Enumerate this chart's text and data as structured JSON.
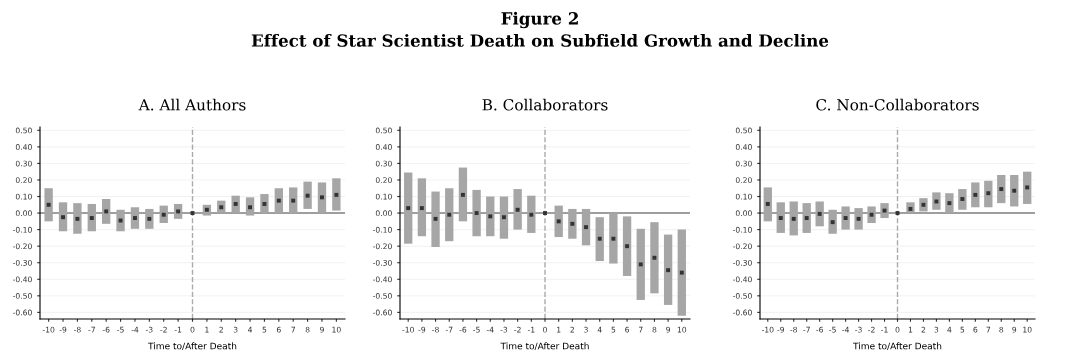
{
  "chart_data": [
    {
      "type": "scatter",
      "title": "A. All Authors",
      "xlabel": "Time to/After Death",
      "annotations": [
        "Figure 2",
        "Effect of Star Scientist Death on Subfield Growth and Decline"
      ],
      "x": [
        -10,
        -9,
        -8,
        -7,
        -6,
        -5,
        -4,
        -3,
        -2,
        -1,
        0,
        1,
        2,
        3,
        4,
        5,
        6,
        7,
        8,
        9,
        10
      ],
      "series": [
        {
          "color": "#333333",
          "values": [
            0.05,
            -0.025,
            -0.035,
            -0.03,
            0.01,
            -0.045,
            -0.03,
            -0.035,
            -0.01,
            0.01,
            0,
            0.02,
            0.035,
            0.055,
            0.035,
            0.055,
            0.075,
            0.075,
            0.105,
            0.095,
            0.11
          ],
          "errors": [
            [
              -0.05,
              0.15
            ],
            [
              -0.11,
              0.065
            ],
            [
              -0.125,
              0.06
            ],
            [
              -0.11,
              0.055
            ],
            [
              -0.065,
              0.085
            ],
            [
              -0.11,
              0.02
            ],
            [
              -0.095,
              0.035
            ],
            [
              -0.095,
              0.025
            ],
            [
              -0.06,
              0.045
            ],
            [
              -0.035,
              0.055
            ],
            null,
            [
              -0.015,
              0.05
            ],
            [
              0.0,
              0.075
            ],
            [
              0.0,
              0.105
            ],
            [
              -0.015,
              0.095
            ],
            [
              0.0,
              0.115
            ],
            [
              0.0,
              0.15
            ],
            [
              0.0,
              0.155
            ],
            [
              0.025,
              0.19
            ],
            [
              0.0,
              0.185
            ],
            [
              0.015,
              0.21
            ]
          ]
        }
      ],
      "xlim": [
        -10.6,
        10.6
      ],
      "xticks": [
        -10,
        -9,
        -8,
        -7,
        -6,
        -5,
        -4,
        -3,
        -2,
        -1,
        0,
        1,
        2,
        3,
        4,
        5,
        6,
        7,
        8,
        9,
        10
      ],
      "ylim": [
        -0.64,
        0.52
      ],
      "yticks": [
        {
          "value": -0.6,
          "label": "-0.60"
        },
        {
          "value": -0.5,
          "label": "-0.50"
        },
        {
          "value": -0.4,
          "label": "-0.40"
        },
        {
          "value": -0.3,
          "label": "-0.30"
        },
        {
          "value": -0.2,
          "label": "-0.20"
        },
        {
          "value": -0.1,
          "label": "-0.10"
        },
        {
          "value": 0,
          "label": "0.00"
        },
        {
          "value": 0.1,
          "label": "0.10"
        },
        {
          "value": 0.2,
          "label": "0.20"
        },
        {
          "value": 0.3,
          "label": "0.30"
        },
        {
          "value": 0.4,
          "label": "0.40"
        },
        {
          "value": 0.5,
          "label": "0.50"
        }
      ],
      "ref_lines": [
        {
          "axis": "y",
          "value": 0,
          "color": "#808080",
          "line_style": "solid"
        },
        {
          "axis": "x",
          "value": 0,
          "color": "#aaaaaa",
          "line_style": "dashed"
        }
      ],
      "grid": "y",
      "marker": "square"
    },
    {
      "type": "scatter",
      "title": "B. Collaborators",
      "xlabel": "Time to/After Death",
      "x": [
        -10,
        -9,
        -8,
        -7,
        -6,
        -5,
        -4,
        -3,
        -2,
        -1,
        0,
        1,
        2,
        3,
        4,
        5,
        6,
        7,
        8,
        9,
        10
      ],
      "series": [
        {
          "color": "#333333",
          "values": [
            0.03,
            0.03,
            -0.035,
            -0.01,
            0.11,
            0.0,
            -0.02,
            -0.025,
            0.02,
            -0.01,
            0,
            -0.05,
            -0.065,
            -0.085,
            -0.155,
            -0.155,
            -0.2,
            -0.31,
            -0.27,
            -0.345,
            -0.36
          ],
          "errors": [
            [
              -0.185,
              0.245
            ],
            [
              -0.14,
              0.21
            ],
            [
              -0.205,
              0.13
            ],
            [
              -0.17,
              0.15
            ],
            [
              -0.05,
              0.275
            ],
            [
              -0.14,
              0.14
            ],
            [
              -0.14,
              0.1
            ],
            [
              -0.155,
              0.1
            ],
            [
              -0.1,
              0.145
            ],
            [
              -0.12,
              0.105
            ],
            null,
            [
              -0.145,
              0.045
            ],
            [
              -0.155,
              0.025
            ],
            [
              -0.195,
              0.025
            ],
            [
              -0.29,
              -0.025
            ],
            [
              -0.305,
              0.0
            ],
            [
              -0.38,
              -0.02
            ],
            [
              -0.525,
              -0.095
            ],
            [
              -0.485,
              -0.055
            ],
            [
              -0.555,
              -0.13
            ],
            [
              -0.62,
              -0.1
            ]
          ]
        }
      ],
      "xlim": [
        -10.6,
        10.6
      ],
      "xticks": [
        -10,
        -9,
        -8,
        -7,
        -6,
        -5,
        -4,
        -3,
        -2,
        -1,
        0,
        1,
        2,
        3,
        4,
        5,
        6,
        7,
        8,
        9,
        10
      ],
      "ylim": [
        -0.64,
        0.52
      ],
      "yticks": [
        {
          "value": -0.6,
          "label": "-0.60"
        },
        {
          "value": -0.5,
          "label": "-0.50"
        },
        {
          "value": -0.4,
          "label": "-0.40"
        },
        {
          "value": -0.3,
          "label": "-0.30"
        },
        {
          "value": -0.2,
          "label": "-0.20"
        },
        {
          "value": -0.1,
          "label": "-0.10"
        },
        {
          "value": 0,
          "label": "0.00"
        },
        {
          "value": 0.1,
          "label": "0.10"
        },
        {
          "value": 0.2,
          "label": "0.20"
        },
        {
          "value": 0.3,
          "label": "0.30"
        },
        {
          "value": 0.4,
          "label": "0.40"
        },
        {
          "value": 0.5,
          "label": "0.50"
        }
      ],
      "ref_lines": [
        {
          "axis": "y",
          "value": 0,
          "color": "#808080",
          "line_style": "solid"
        },
        {
          "axis": "x",
          "value": 0,
          "color": "#aaaaaa",
          "line_style": "dashed"
        }
      ],
      "grid": "y",
      "marker": "square"
    },
    {
      "type": "scatter",
      "title": "C. Non-Collaborators",
      "xlabel": "Time to/After Death",
      "x": [
        -10,
        -9,
        -8,
        -7,
        -6,
        -5,
        -4,
        -3,
        -2,
        -1,
        0,
        1,
        2,
        3,
        4,
        5,
        6,
        7,
        8,
        9,
        10
      ],
      "series": [
        {
          "color": "#333333",
          "values": [
            0.055,
            -0.03,
            -0.035,
            -0.03,
            -0.005,
            -0.055,
            -0.03,
            -0.035,
            -0.01,
            0.015,
            0,
            0.025,
            0.05,
            0.07,
            0.06,
            0.085,
            0.11,
            0.12,
            0.145,
            0.135,
            0.155
          ],
          "errors": [
            [
              -0.05,
              0.155
            ],
            [
              -0.12,
              0.065
            ],
            [
              -0.135,
              0.07
            ],
            [
              -0.12,
              0.06
            ],
            [
              -0.08,
              0.07
            ],
            [
              -0.125,
              0.02
            ],
            [
              -0.1,
              0.04
            ],
            [
              -0.1,
              0.03
            ],
            [
              -0.06,
              0.04
            ],
            [
              -0.03,
              0.06
            ],
            null,
            [
              0.0,
              0.065
            ],
            [
              0.01,
              0.09
            ],
            [
              0.02,
              0.125
            ],
            [
              0.0,
              0.12
            ],
            [
              0.02,
              0.145
            ],
            [
              0.035,
              0.185
            ],
            [
              0.035,
              0.195
            ],
            [
              0.06,
              0.23
            ],
            [
              0.04,
              0.23
            ],
            [
              0.055,
              0.25
            ]
          ]
        }
      ],
      "xlim": [
        -10.6,
        10.6
      ],
      "xticks": [
        -10,
        -9,
        -8,
        -7,
        -6,
        -5,
        -4,
        -3,
        -2,
        -1,
        0,
        1,
        2,
        3,
        4,
        5,
        6,
        7,
        8,
        9,
        10
      ],
      "ylim": [
        -0.64,
        0.52
      ],
      "yticks": [
        {
          "value": -0.6,
          "label": "-0.60"
        },
        {
          "value": -0.5,
          "label": "-0.50"
        },
        {
          "value": -0.4,
          "label": "-0.40"
        },
        {
          "value": -0.3,
          "label": "-0.30"
        },
        {
          "value": -0.2,
          "label": "-0.20"
        },
        {
          "value": -0.1,
          "label": "-0.10"
        },
        {
          "value": 0,
          "label": "0.00"
        },
        {
          "value": 0.1,
          "label": "0.10"
        },
        {
          "value": 0.2,
          "label": "0.20"
        },
        {
          "value": 0.3,
          "label": "0.30"
        },
        {
          "value": 0.4,
          "label": "0.40"
        },
        {
          "value": 0.5,
          "label": "0.50"
        }
      ],
      "ref_lines": [
        {
          "axis": "y",
          "value": 0,
          "color": "#808080",
          "line_style": "solid"
        },
        {
          "axis": "x",
          "value": 0,
          "color": "#aaaaaa",
          "line_style": "dashed"
        }
      ],
      "grid": "y",
      "marker": "square"
    }
  ]
}
